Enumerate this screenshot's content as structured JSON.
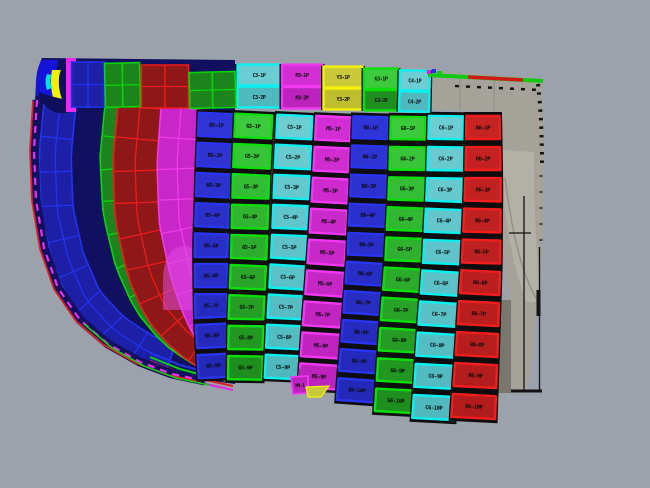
{
  "viewport": {
    "name": "3d-shell-plating-view",
    "background": "#9CA2AC"
  },
  "palette": {
    "background": "#9CA2AC",
    "label": "#0A0A0A",
    "backing": "#0D0D0D",
    "navy": "#10105E",
    "blue": {
      "border": "#2A35F2",
      "fill_top": "#2F34D6",
      "fill_bottom": "#2328B8"
    },
    "green": {
      "border": "#0ADF0A",
      "fill_top": "#3CCB3C",
      "fill_bottom": "#1E8F1E"
    },
    "cyan": {
      "border": "#0AF0F0",
      "fill_top": "#6CCDD2",
      "fill_bottom": "#4FB9BE"
    },
    "magenta": {
      "border": "#F239F2",
      "fill_top": "#D32ED3",
      "fill_bottom": "#BC22BC"
    },
    "red": {
      "border": "#F21D1D",
      "fill_top": "#C62323",
      "fill_bottom": "#B21C1C"
    },
    "yellow": {
      "border": "#F2F20A",
      "fill_top": "#C9C93A",
      "fill_bottom": "#BEBE2E"
    },
    "wire": {
      "blue": {
        "line": "#2433EE",
        "fill": "#1D1FA6"
      },
      "green": {
        "line": "#0AD40A",
        "fill": "#1D841D"
      },
      "red": {
        "line": "#EE1C1C",
        "fill": "#8E1717"
      },
      "magenta": {
        "line": "#EE3CEE",
        "fill": "#C826C8"
      }
    },
    "seam_magenta": "#F030F0",
    "seam_red": "#E02020",
    "seam_green": "#0ACF0A",
    "slab": {
      "base": "#A5A29A",
      "light": "#B3B0A7",
      "dark": "#79766E",
      "crease": "#918E85",
      "outline": "#121212"
    }
  },
  "model": {
    "top_strakes": [
      {
        "id": "TS1",
        "color": "cyan",
        "labels": [
          "C3-1P",
          "C3-2P"
        ]
      },
      {
        "id": "TS2",
        "color": "magenta",
        "labels": [
          "M3-1P",
          "M3-2P"
        ]
      },
      {
        "id": "TS3",
        "color": "yellow",
        "labels": [
          "Y3-1P",
          "Y3-2P"
        ]
      },
      {
        "id": "TS4",
        "color": "green",
        "labels": [
          "G3-1P",
          "G3-2P"
        ]
      },
      {
        "id": "TS5",
        "color": "cyan",
        "labels": [
          "C4-1P",
          "C4-2P"
        ]
      }
    ],
    "main_strakes": [
      {
        "id": "MS1",
        "color": "blue",
        "labels": [
          "B5-1P",
          "B5-2P",
          "B5-3P",
          "B5-4P",
          "B5-5P",
          "B5-6P",
          "B5-7P",
          "B5-8P",
          "B5-9P"
        ]
      },
      {
        "id": "MS2",
        "color": "green",
        "labels": [
          "G5-1P",
          "G5-2P",
          "G5-3P",
          "G5-4P",
          "G5-5P",
          "G5-6P",
          "G5-7P",
          "G5-8P",
          "G5-9P"
        ]
      },
      {
        "id": "MS3",
        "color": "cyan",
        "labels": [
          "C5-1P",
          "C5-2P",
          "C5-3P",
          "C5-4P",
          "C5-5P",
          "C5-6P",
          "C5-7P",
          "C5-8P",
          "C5-9P"
        ]
      },
      {
        "id": "MS4",
        "color": "magenta",
        "labels": [
          "M5-1P",
          "M5-2P",
          "M5-3P",
          "M5-4P",
          "M5-5P",
          "M5-6P",
          "M5-7P",
          "M5-8P",
          "M5-9P"
        ]
      },
      {
        "id": "MS5",
        "color": "blue",
        "labels": [
          "B6-1P",
          "B6-2P",
          "B6-3P",
          "B6-4P",
          "B6-5P",
          "B6-6P",
          "B6-7P",
          "B6-8P",
          "B6-9P",
          "B6-10P"
        ]
      },
      {
        "id": "MS6",
        "color": "green",
        "labels": [
          "G6-1P",
          "G6-2P",
          "G6-3P",
          "G6-4P",
          "G6-5P",
          "G6-6P",
          "G6-7P",
          "G6-8P",
          "G6-9P",
          "G6-10P"
        ]
      },
      {
        "id": "MS7",
        "color": "cyan",
        "labels": [
          "C6-1P",
          "C6-2P",
          "C6-3P",
          "C6-4P",
          "C6-5P",
          "C6-6P",
          "C6-7P",
          "C6-8P",
          "C6-9P",
          "C6-10P"
        ]
      },
      {
        "id": "MS8",
        "color": "red",
        "labels": [
          "R6-1P",
          "R6-2P",
          "R6-3P",
          "R6-4P",
          "R6-5P",
          "R6-6P",
          "R6-7P",
          "R6-8P",
          "R6-9P",
          "R6-10P"
        ]
      }
    ],
    "extra_plates": [
      {
        "id": "XP1",
        "color": "magenta",
        "label": "M9-1"
      }
    ]
  }
}
